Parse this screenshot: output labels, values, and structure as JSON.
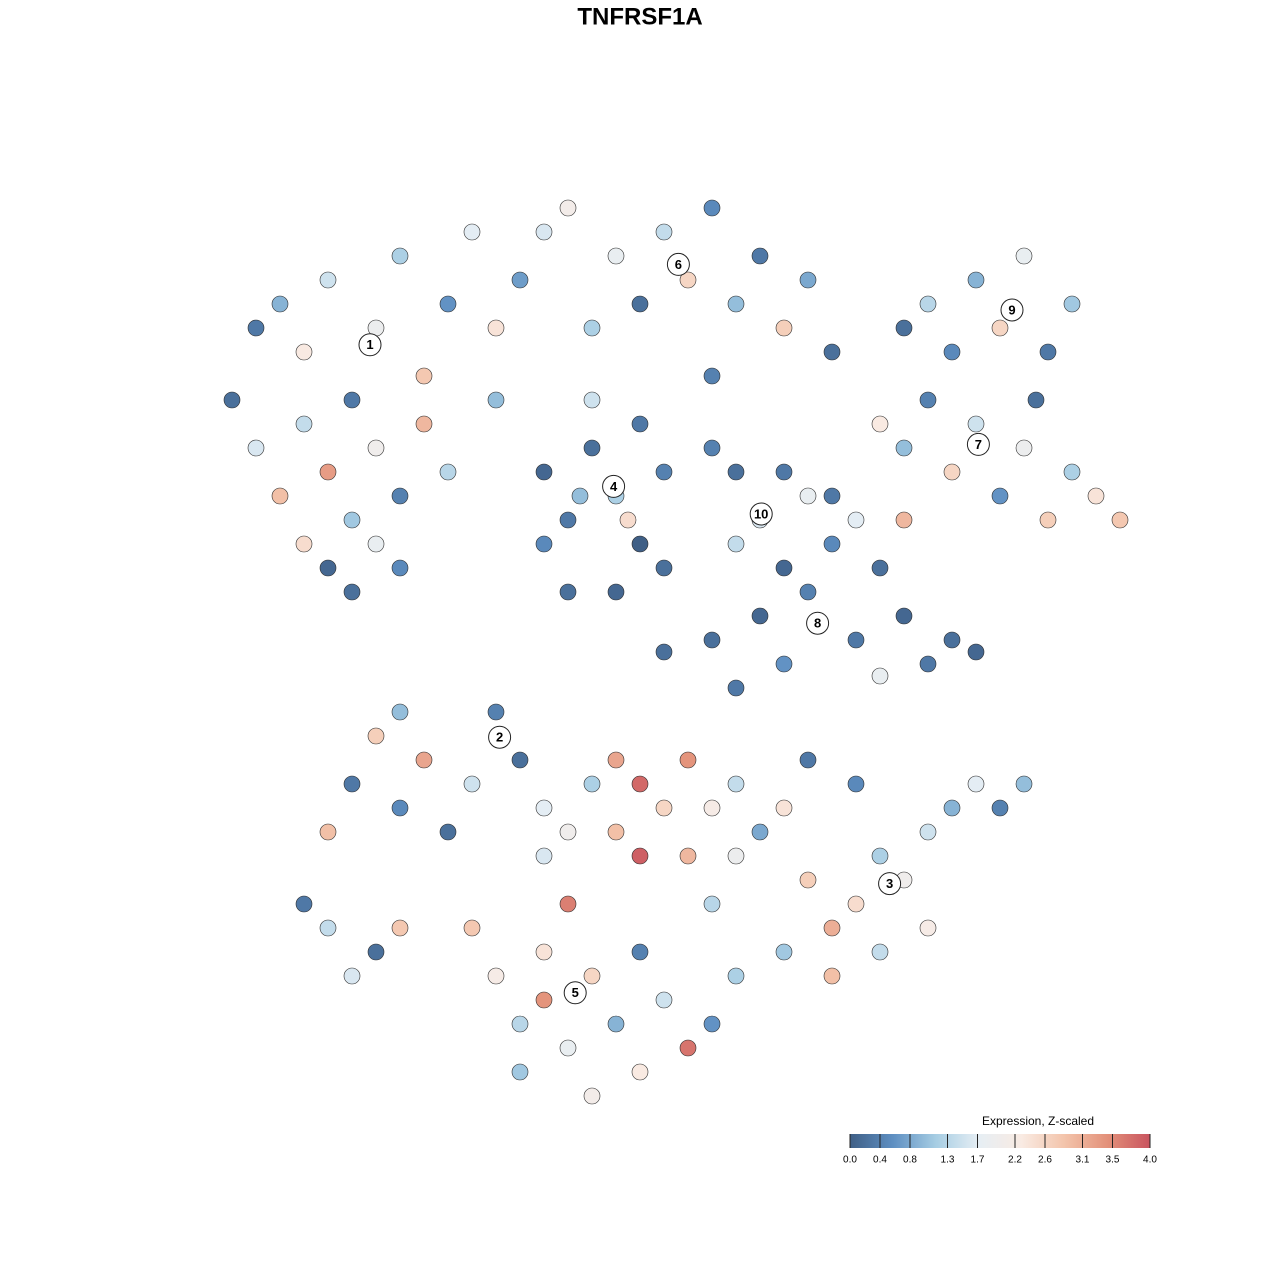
{
  "chart_data": {
    "type": "scatter",
    "title": "TNFRSF1A",
    "x": [
      -30,
      -28,
      -26,
      -24,
      -22,
      -20,
      -18,
      -16,
      -14,
      -12,
      -34,
      -32,
      -30,
      -28,
      -26,
      -24,
      -22,
      -20,
      -18,
      -16,
      -26,
      -24,
      -22,
      -20,
      -28,
      -10,
      -8,
      -6,
      -12,
      -32,
      -2,
      0,
      2,
      4,
      6,
      8,
      10,
      12,
      14,
      16,
      -4,
      6,
      22,
      24,
      26,
      28,
      30,
      32,
      34,
      36,
      33,
      20,
      22,
      24,
      26,
      28,
      30,
      32,
      34,
      36,
      38,
      40,
      18,
      22,
      16,
      -8,
      -6,
      -4,
      -2,
      0,
      2,
      -6,
      -2,
      0,
      -8,
      -4,
      2,
      -1,
      -5,
      8,
      10,
      12,
      8,
      12,
      6,
      14,
      6,
      10,
      14,
      18,
      20,
      22,
      24,
      26,
      16,
      12,
      8,
      28,
      20,
      2,
      -24,
      -22,
      -20,
      -18,
      -16,
      -14,
      -12,
      -10,
      -8,
      -20,
      -26,
      -28,
      -26,
      -22,
      -20,
      -24,
      -4,
      -2,
      0,
      2,
      4,
      6,
      8,
      -6,
      -8,
      -2,
      0,
      4,
      8,
      10,
      12,
      14,
      16,
      18,
      20,
      22,
      24,
      26,
      28,
      30,
      24,
      20,
      16,
      12,
      14,
      6,
      -6,
      -8,
      32,
      18,
      -12,
      -10,
      -8,
      -6,
      -4,
      -2,
      0,
      2,
      4,
      6,
      -10,
      -4,
      0,
      8,
      -14
    ],
    "y": [
      28,
      24,
      30,
      20,
      26,
      32,
      22,
      28,
      34,
      26,
      20,
      16,
      12,
      18,
      14,
      10,
      16,
      12,
      18,
      14,
      6,
      4,
      8,
      6,
      8,
      30,
      34,
      36,
      20,
      26,
      32,
      28,
      34,
      30,
      36,
      28,
      32,
      26,
      30,
      24,
      26,
      22,
      26,
      28,
      24,
      30,
      26,
      32,
      24,
      28,
      20,
      18,
      16,
      20,
      14,
      18,
      12,
      16,
      10,
      14,
      12,
      10,
      10,
      10,
      12,
      14,
      10,
      16,
      12,
      8,
      14,
      4,
      4,
      18,
      8,
      20,
      6,
      10,
      12,
      14,
      10,
      14,
      8,
      6,
      16,
      12,
      0,
      2,
      4,
      0,
      6,
      2,
      -2,
      0,
      8,
      -2,
      -4,
      -1,
      -3,
      -1,
      -12,
      -8,
      -14,
      -10,
      -16,
      -12,
      -6,
      -10,
      -14,
      -6,
      -16,
      -22,
      -24,
      -26,
      -24,
      -28,
      -12,
      -10,
      -12,
      -14,
      -10,
      -14,
      -12,
      -16,
      -18,
      -16,
      -18,
      -18,
      -18,
      -16,
      -14,
      -20,
      -24,
      -22,
      -18,
      -20,
      -16,
      -14,
      -12,
      -14,
      -24,
      -26,
      -28,
      -26,
      -10,
      -22,
      -22,
      -26,
      -12,
      -12,
      -28,
      -32,
      -30,
      -34,
      -28,
      -32,
      -36,
      -30,
      -34,
      -32,
      -36,
      -38,
      -26,
      -28,
      -24
    ],
    "values": [
      0.9,
      2.3,
      1.5,
      0.3,
      1.9,
      1.2,
      2.8,
      0.6,
      1.7,
      2.4,
      0.2,
      1.6,
      2.9,
      1.4,
      3.3,
      1.1,
      2.0,
      0.4,
      3.0,
      1.3,
      0.1,
      0.2,
      1.8,
      0.5,
      2.5,
      0.7,
      1.6,
      2.1,
      1.0,
      0.3,
      1.8,
      0.2,
      1.4,
      2.6,
      0.5,
      1.0,
      0.3,
      2.7,
      0.8,
      0.2,
      1.2,
      0.4,
      0.2,
      1.3,
      0.5,
      0.9,
      2.6,
      1.8,
      0.3,
      1.1,
      0.2,
      2.3,
      1.0,
      0.4,
      2.6,
      1.5,
      0.6,
      1.9,
      2.7,
      1.2,
      2.4,
      2.8,
      1.7,
      3.0,
      0.3,
      0.1,
      0.3,
      0.2,
      1.2,
      0.0,
      0.4,
      0.2,
      0.1,
      0.3,
      0.5,
      1.5,
      0.2,
      2.5,
      1.0,
      0.2,
      1.6,
      0.3,
      1.4,
      0.1,
      0.4,
      1.8,
      0.2,
      0.1,
      0.4,
      0.3,
      0.2,
      0.1,
      0.3,
      0.2,
      0.5,
      0.6,
      0.3,
      0.1,
      1.8,
      0.2,
      0.3,
      2.7,
      0.5,
      3.2,
      0.2,
      1.5,
      0.4,
      0.2,
      1.7,
      1.0,
      2.9,
      0.3,
      1.4,
      0.2,
      2.8,
      1.6,
      1.2,
      3.2,
      3.8,
      2.6,
      3.4,
      2.2,
      1.4,
      2.0,
      1.6,
      2.9,
      3.9,
      3.0,
      1.9,
      0.8,
      2.4,
      2.7,
      3.1,
      2.5,
      1.2,
      2.0,
      1.5,
      0.9,
      1.7,
      0.4,
      2.2,
      1.4,
      2.9,
      1.1,
      0.3,
      1.3,
      3.6,
      2.4,
      1.0,
      0.5,
      2.2,
      1.3,
      3.4,
      1.8,
      2.6,
      0.9,
      2.3,
      1.5,
      3.7,
      0.6,
      1.1,
      2.1,
      0.4,
      1.2,
      2.8
    ],
    "clusters": [
      {
        "label": "1",
        "x": -22.5,
        "y": 24.6
      },
      {
        "label": "2",
        "x": -11.7,
        "y": -8.1
      },
      {
        "label": "3",
        "x": 20.8,
        "y": -20.3
      },
      {
        "label": "4",
        "x": -2.2,
        "y": 12.8
      },
      {
        "label": "5",
        "x": -5.4,
        "y": -29.4
      },
      {
        "label": "6",
        "x": 3.2,
        "y": 31.3
      },
      {
        "label": "7",
        "x": 28.2,
        "y": 16.3
      },
      {
        "label": "8",
        "x": 14.8,
        "y": 1.4
      },
      {
        "label": "9",
        "x": 31,
        "y": 27.5
      },
      {
        "label": "10",
        "x": 10.1,
        "y": 10.5
      }
    ],
    "colorbar_title": "Expression, Z-scaled",
    "clim": [
      0,
      4
    ],
    "colorbar_ticks": [
      {
        "value": 0,
        "label": "0.0"
      },
      0.4,
      0.8,
      1.3,
      1.7,
      2.2,
      2.6,
      3.1,
      3.5,
      {
        "value": 4,
        "label": "4.0"
      }
    ],
    "colors": [
      "#3f5f86",
      "#5e8fc2",
      "#a6cde3",
      "#e6eef4",
      "#f9ebe3",
      "#f3c4ab",
      "#e3917a",
      "#c9545f"
    ]
  }
}
